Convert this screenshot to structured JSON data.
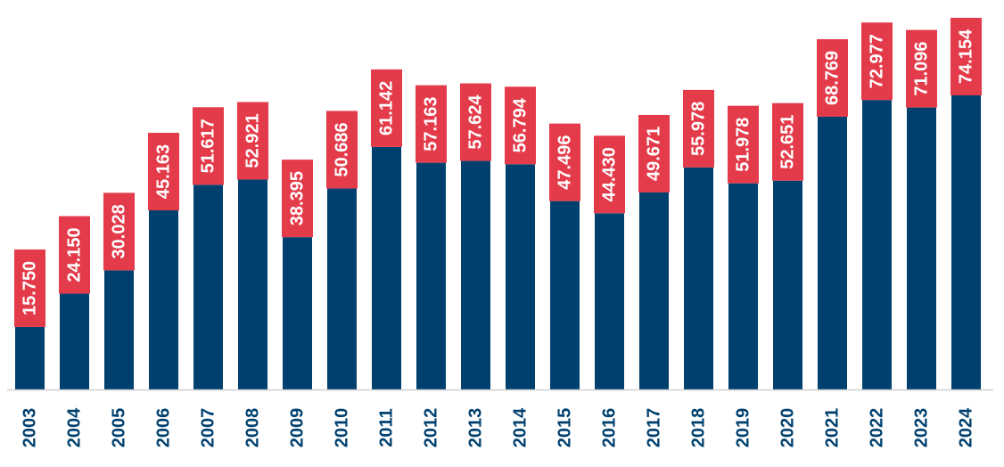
{
  "chart_data": {
    "type": "bar",
    "categories": [
      "2003",
      "2004",
      "2005",
      "2006",
      "2007",
      "2008",
      "2009",
      "2010",
      "2011",
      "2012",
      "2013",
      "2014",
      "2015",
      "2016",
      "2017",
      "2018",
      "2019",
      "2020",
      "2021",
      "2022",
      "2023",
      "2024"
    ],
    "values": [
      15750,
      24150,
      30028,
      45163,
      51617,
      52921,
      38395,
      50686,
      61142,
      57163,
      57624,
      56794,
      47496,
      44430,
      49671,
      55978,
      51978,
      52651,
      68769,
      72977,
      71096,
      74154
    ],
    "value_labels": [
      "15.750",
      "24.150",
      "30.028",
      "45.163",
      "51.617",
      "52.921",
      "38.395",
      "50.686",
      "61.142",
      "57.163",
      "57.624",
      "56.794",
      "47.496",
      "44.430",
      "49.671",
      "55.978",
      "51.978",
      "52.651",
      "68.769",
      "72.977",
      "71.096",
      "74.154"
    ],
    "title": "",
    "xlabel": "",
    "ylabel": "",
    "ylim": [
      0,
      74154
    ],
    "grid": false,
    "legend": "none",
    "colors": {
      "bar": "#00406F",
      "label_background": "#E43B4A",
      "label_text": "#FFFFFF",
      "axis_text": "#00406F"
    }
  }
}
